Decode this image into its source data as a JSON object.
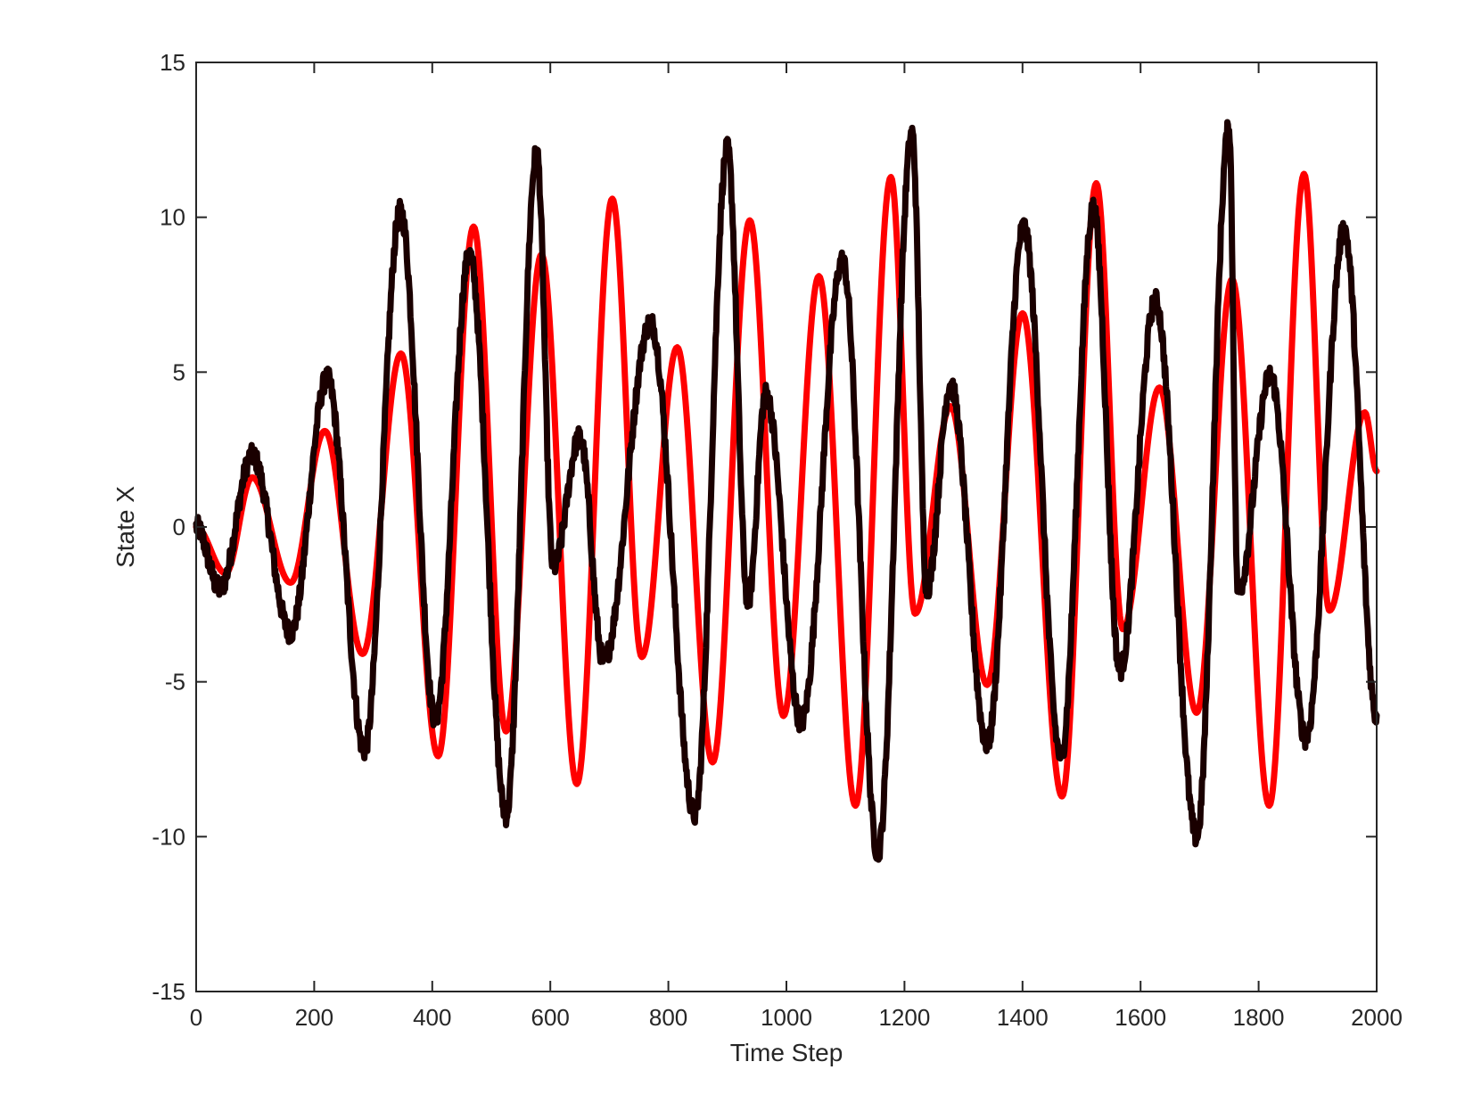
{
  "chart_data": {
    "type": "line",
    "title": "",
    "xlabel": "Time Step",
    "ylabel": "State X",
    "xlim": [
      0,
      2000
    ],
    "ylim": [
      -15,
      15
    ],
    "xticks": [
      0,
      200,
      400,
      600,
      800,
      1000,
      1200,
      1400,
      1600,
      1800,
      2000
    ],
    "yticks": [
      -15,
      -10,
      -5,
      0,
      5,
      10,
      15
    ],
    "grid": false,
    "legend": "none",
    "series": [
      {
        "color": "#ff0000",
        "noisy": false,
        "points": [
          [
            0,
            0
          ],
          [
            50,
            -1.5
          ],
          [
            95,
            1.6
          ],
          [
            160,
            -1.8
          ],
          [
            218,
            3.1
          ],
          [
            282,
            -4.1
          ],
          [
            347,
            5.6
          ],
          [
            410,
            -7.4
          ],
          [
            470,
            9.7
          ],
          [
            525,
            -6.6
          ],
          [
            585,
            8.8
          ],
          [
            645,
            -8.3
          ],
          [
            705,
            10.6
          ],
          [
            755,
            -4.2
          ],
          [
            815,
            5.8
          ],
          [
            875,
            -7.6
          ],
          [
            938,
            9.9
          ],
          [
            995,
            -6.1
          ],
          [
            1055,
            8.1
          ],
          [
            1117,
            -9.0
          ],
          [
            1177,
            11.3
          ],
          [
            1218,
            -2.8
          ],
          [
            1278,
            3.9
          ],
          [
            1340,
            -5.1
          ],
          [
            1400,
            6.9
          ],
          [
            1467,
            -8.7
          ],
          [
            1525,
            11.1
          ],
          [
            1570,
            -3.3
          ],
          [
            1632,
            4.5
          ],
          [
            1695,
            -6.0
          ],
          [
            1755,
            8.0
          ],
          [
            1818,
            -9.0
          ],
          [
            1877,
            11.4
          ],
          [
            1920,
            -2.7
          ],
          [
            1980,
            3.7
          ],
          [
            2000,
            1.8
          ]
        ]
      },
      {
        "color": "#1a0000",
        "noisy": true,
        "points": [
          [
            0,
            0
          ],
          [
            40,
            -2.0
          ],
          [
            95,
            2.3
          ],
          [
            160,
            -3.4
          ],
          [
            222,
            4.8
          ],
          [
            285,
            -7.2
          ],
          [
            346,
            10.2
          ],
          [
            405,
            -6.2
          ],
          [
            463,
            8.8
          ],
          [
            525,
            -9.3
          ],
          [
            577,
            12.1
          ],
          [
            605,
            -1.3
          ],
          [
            650,
            2.9
          ],
          [
            690,
            -4.3
          ],
          [
            770,
            6.6
          ],
          [
            845,
            -9.3
          ],
          [
            900,
            12.2
          ],
          [
            935,
            -2.4
          ],
          [
            965,
            4.3
          ],
          [
            1025,
            -6.3
          ],
          [
            1095,
            8.6
          ],
          [
            1155,
            -10.5
          ],
          [
            1213,
            12.7
          ],
          [
            1238,
            -2.0
          ],
          [
            1278,
            4.6
          ],
          [
            1340,
            -7.0
          ],
          [
            1402,
            9.7
          ],
          [
            1465,
            -7.4
          ],
          [
            1520,
            10.3
          ],
          [
            1565,
            -4.6
          ],
          [
            1625,
            7.3
          ],
          [
            1695,
            -10.0
          ],
          [
            1750,
            12.9
          ],
          [
            1765,
            -2.1
          ],
          [
            1820,
            4.9
          ],
          [
            1880,
            -6.8
          ],
          [
            1945,
            9.6
          ],
          [
            2000,
            -6.1
          ]
        ]
      }
    ]
  }
}
